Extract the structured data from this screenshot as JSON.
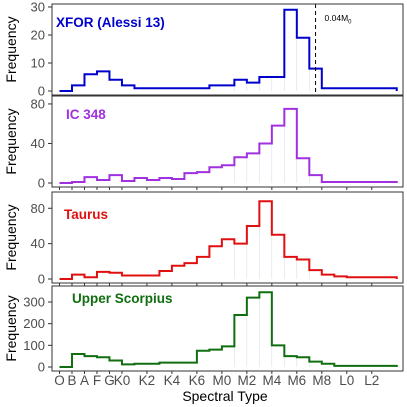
{
  "chart_data": {
    "type": "step-histogram",
    "xlabel": "Spectral Type",
    "ylabel": "Frequency",
    "x_tick_labels": [
      "O",
      "B",
      "A",
      "F",
      "G",
      "K0",
      "K2",
      "K4",
      "K6",
      "M0",
      "M2",
      "M4",
      "M6",
      "M8",
      "L0",
      "L2"
    ],
    "x_tick_positions": [
      0,
      1,
      2,
      3,
      4,
      5,
      7,
      9,
      11,
      13,
      15,
      17,
      19,
      21,
      23,
      25
    ],
    "xlim": [
      -0.6,
      27.5
    ],
    "bin_edges": [
      0,
      1,
      2,
      3,
      4,
      5,
      6,
      7,
      8,
      9,
      10,
      11,
      12,
      13,
      14,
      15,
      16,
      17,
      18,
      19,
      20,
      21,
      22,
      23,
      24,
      25,
      26,
      27
    ],
    "panels": [
      {
        "name": "XFOR (Alessi 13)",
        "color": "#0000cc",
        "ylim": [
          0,
          30
        ],
        "yticks": [
          0,
          10,
          20,
          30
        ],
        "counts": [
          0,
          2,
          6,
          7,
          4,
          2,
          1,
          1,
          1,
          1,
          1,
          1,
          2,
          2,
          4,
          3,
          5,
          5,
          29,
          19,
          8,
          1,
          1,
          1,
          1,
          1,
          1
        ],
        "annotation": {
          "x": 20.5,
          "text": "0.04M",
          "subscript": "0"
        }
      },
      {
        "name": "IC 348",
        "color": "#a030e0",
        "ylim": [
          0,
          85
        ],
        "yticks": [
          0,
          40,
          80
        ],
        "counts": [
          0,
          1,
          6,
          3,
          8,
          2,
          5,
          3,
          5,
          4,
          10,
          11,
          16,
          18,
          26,
          30,
          40,
          58,
          75,
          25,
          8,
          1,
          1,
          1,
          1,
          1,
          1
        ]
      },
      {
        "name": "Taurus",
        "color": "#e01010",
        "ylim": [
          0,
          95
        ],
        "yticks": [
          0,
          40,
          80
        ],
        "counts": [
          0,
          5,
          2,
          8,
          7,
          4,
          4,
          4,
          9,
          15,
          18,
          25,
          37,
          45,
          40,
          60,
          88,
          50,
          25,
          22,
          10,
          5,
          3,
          2,
          2,
          2,
          2
        ]
      },
      {
        "name": "Upper Scorpius",
        "color": "#106e10",
        "ylim": [
          0,
          360
        ],
        "yticks": [
          0,
          100,
          200,
          300
        ],
        "counts": [
          0,
          60,
          50,
          45,
          30,
          12,
          15,
          15,
          20,
          20,
          20,
          75,
          80,
          95,
          240,
          320,
          345,
          100,
          50,
          45,
          25,
          15,
          5,
          5,
          5,
          5,
          5
        ]
      }
    ]
  }
}
